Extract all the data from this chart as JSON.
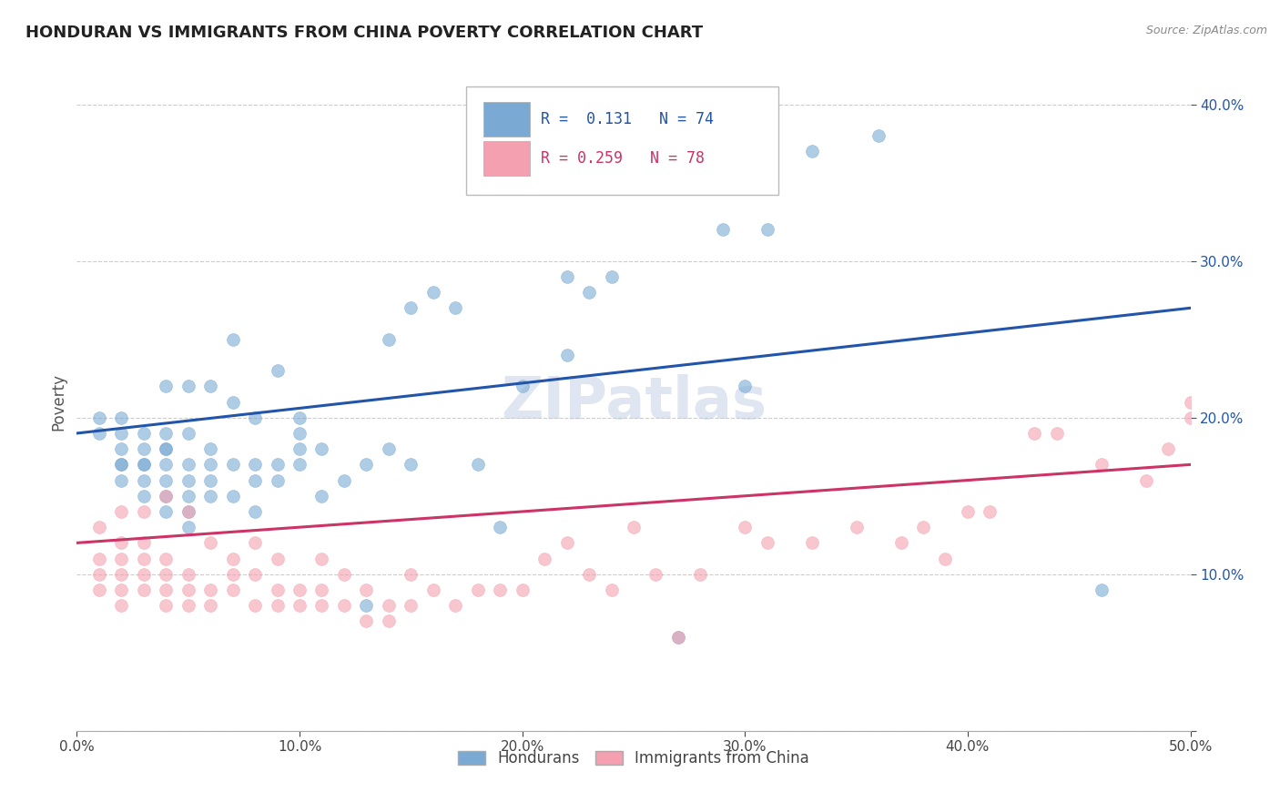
{
  "title": "HONDURAN VS IMMIGRANTS FROM CHINA POVERTY CORRELATION CHART",
  "source": "Source: ZipAtlas.com",
  "ylabel": "Poverty",
  "xlim": [
    0.0,
    0.5
  ],
  "ylim": [
    0.0,
    0.42
  ],
  "xticks": [
    0.0,
    0.1,
    0.2,
    0.3,
    0.4,
    0.5
  ],
  "yticks": [
    0.0,
    0.1,
    0.2,
    0.3,
    0.4
  ],
  "xtick_labels": [
    "0.0%",
    "10.0%",
    "20.0%",
    "30.0%",
    "40.0%",
    "50.0%"
  ],
  "ytick_labels": [
    "",
    "10.0%",
    "20.0%",
    "30.0%",
    "40.0%"
  ],
  "label1": "Hondurans",
  "label2": "Immigrants from China",
  "color_blue": "#7aaad4",
  "color_pink": "#f4a0b0",
  "color_blue_line": "#2255aa",
  "color_pink_line": "#cc3366",
  "watermark": "ZIPatlas",
  "blue_x": [
    0.01,
    0.01,
    0.02,
    0.02,
    0.02,
    0.02,
    0.02,
    0.02,
    0.03,
    0.03,
    0.03,
    0.03,
    0.03,
    0.03,
    0.04,
    0.04,
    0.04,
    0.04,
    0.04,
    0.04,
    0.04,
    0.04,
    0.05,
    0.05,
    0.05,
    0.05,
    0.05,
    0.05,
    0.05,
    0.06,
    0.06,
    0.06,
    0.06,
    0.06,
    0.07,
    0.07,
    0.07,
    0.07,
    0.08,
    0.08,
    0.08,
    0.08,
    0.09,
    0.09,
    0.09,
    0.1,
    0.1,
    0.1,
    0.1,
    0.11,
    0.11,
    0.12,
    0.13,
    0.13,
    0.14,
    0.14,
    0.15,
    0.15,
    0.16,
    0.17,
    0.18,
    0.19,
    0.2,
    0.22,
    0.22,
    0.23,
    0.24,
    0.27,
    0.29,
    0.3,
    0.31,
    0.33,
    0.36,
    0.46
  ],
  "blue_y": [
    0.19,
    0.2,
    0.16,
    0.17,
    0.17,
    0.18,
    0.19,
    0.2,
    0.15,
    0.16,
    0.17,
    0.17,
    0.18,
    0.19,
    0.14,
    0.15,
    0.16,
    0.17,
    0.18,
    0.18,
    0.19,
    0.22,
    0.13,
    0.14,
    0.15,
    0.16,
    0.17,
    0.19,
    0.22,
    0.15,
    0.16,
    0.17,
    0.18,
    0.22,
    0.15,
    0.17,
    0.21,
    0.25,
    0.14,
    0.16,
    0.17,
    0.2,
    0.16,
    0.17,
    0.23,
    0.17,
    0.18,
    0.19,
    0.2,
    0.15,
    0.18,
    0.16,
    0.08,
    0.17,
    0.18,
    0.25,
    0.17,
    0.27,
    0.28,
    0.27,
    0.17,
    0.13,
    0.22,
    0.24,
    0.29,
    0.28,
    0.29,
    0.06,
    0.32,
    0.22,
    0.32,
    0.37,
    0.38,
    0.09
  ],
  "pink_x": [
    0.01,
    0.01,
    0.01,
    0.01,
    0.02,
    0.02,
    0.02,
    0.02,
    0.02,
    0.02,
    0.03,
    0.03,
    0.03,
    0.03,
    0.03,
    0.04,
    0.04,
    0.04,
    0.04,
    0.04,
    0.05,
    0.05,
    0.05,
    0.05,
    0.06,
    0.06,
    0.06,
    0.07,
    0.07,
    0.07,
    0.08,
    0.08,
    0.08,
    0.09,
    0.09,
    0.09,
    0.1,
    0.1,
    0.11,
    0.11,
    0.11,
    0.12,
    0.12,
    0.13,
    0.13,
    0.14,
    0.14,
    0.15,
    0.15,
    0.16,
    0.17,
    0.18,
    0.19,
    0.2,
    0.21,
    0.22,
    0.23,
    0.24,
    0.25,
    0.26,
    0.27,
    0.28,
    0.3,
    0.31,
    0.33,
    0.35,
    0.37,
    0.38,
    0.39,
    0.4,
    0.41,
    0.43,
    0.44,
    0.46,
    0.48,
    0.49,
    0.5,
    0.5
  ],
  "pink_y": [
    0.09,
    0.1,
    0.11,
    0.13,
    0.08,
    0.09,
    0.1,
    0.11,
    0.12,
    0.14,
    0.09,
    0.1,
    0.11,
    0.12,
    0.14,
    0.08,
    0.09,
    0.1,
    0.11,
    0.15,
    0.08,
    0.09,
    0.1,
    0.14,
    0.08,
    0.09,
    0.12,
    0.09,
    0.1,
    0.11,
    0.08,
    0.1,
    0.12,
    0.08,
    0.09,
    0.11,
    0.08,
    0.09,
    0.08,
    0.09,
    0.11,
    0.08,
    0.1,
    0.07,
    0.09,
    0.07,
    0.08,
    0.08,
    0.1,
    0.09,
    0.08,
    0.09,
    0.09,
    0.09,
    0.11,
    0.12,
    0.1,
    0.09,
    0.13,
    0.1,
    0.06,
    0.1,
    0.13,
    0.12,
    0.12,
    0.13,
    0.12,
    0.13,
    0.11,
    0.14,
    0.14,
    0.19,
    0.19,
    0.17,
    0.16,
    0.18,
    0.2,
    0.21
  ],
  "blue_line_start_y": 0.19,
  "blue_line_end_y": 0.27,
  "pink_line_start_y": 0.12,
  "pink_line_end_y": 0.17
}
